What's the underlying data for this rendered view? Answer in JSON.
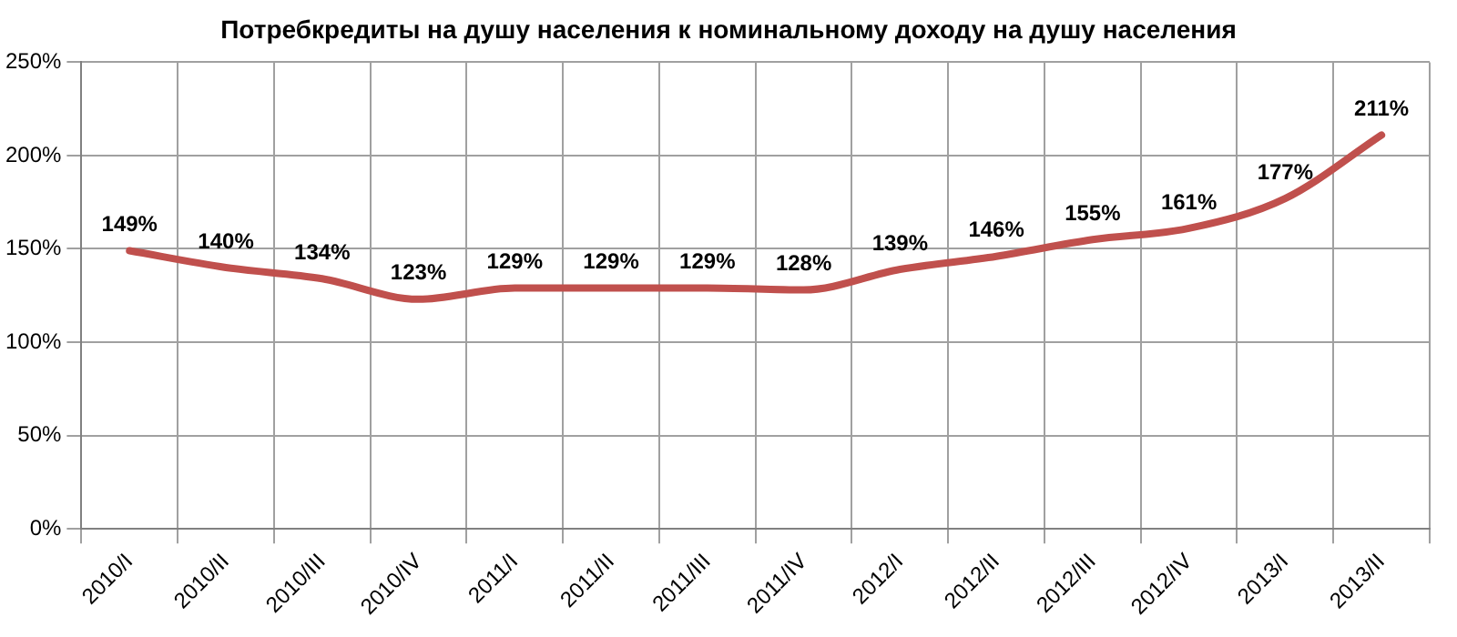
{
  "chart_data": {
    "type": "line",
    "title": "Потребкредиты на душу населения к номинальному доходу на душу населения",
    "categories": [
      "2010/I",
      "2010/II",
      "2010/III",
      "2010/IV",
      "2011/I",
      "2011/II",
      "2011/III",
      "2011/IV",
      "2012/I",
      "2012/II",
      "2012/III",
      "2012/IV",
      "2013/I",
      "2013/II"
    ],
    "series": [
      {
        "color": "#c0504d",
        "values": [
          149,
          140,
          134,
          123,
          129,
          129,
          129,
          128,
          139,
          146,
          155,
          161,
          177,
          211
        ],
        "value_labels": [
          "149%",
          "140%",
          "134%",
          "123%",
          "129%",
          "129%",
          "129%",
          "128%",
          "139%",
          "146%",
          "155%",
          "161%",
          "177%",
          "211%"
        ]
      }
    ],
    "ylim": [
      0,
      250
    ],
    "yticks": [
      {
        "value": 0,
        "label": "0%"
      },
      {
        "value": 50,
        "label": "50%"
      },
      {
        "value": 100,
        "label": "100%"
      },
      {
        "value": 150,
        "label": "150%"
      },
      {
        "value": 200,
        "label": "200%"
      },
      {
        "value": 250,
        "label": "250%"
      }
    ],
    "grid": true,
    "legend": false,
    "marker": "none",
    "line_style": "solid"
  }
}
